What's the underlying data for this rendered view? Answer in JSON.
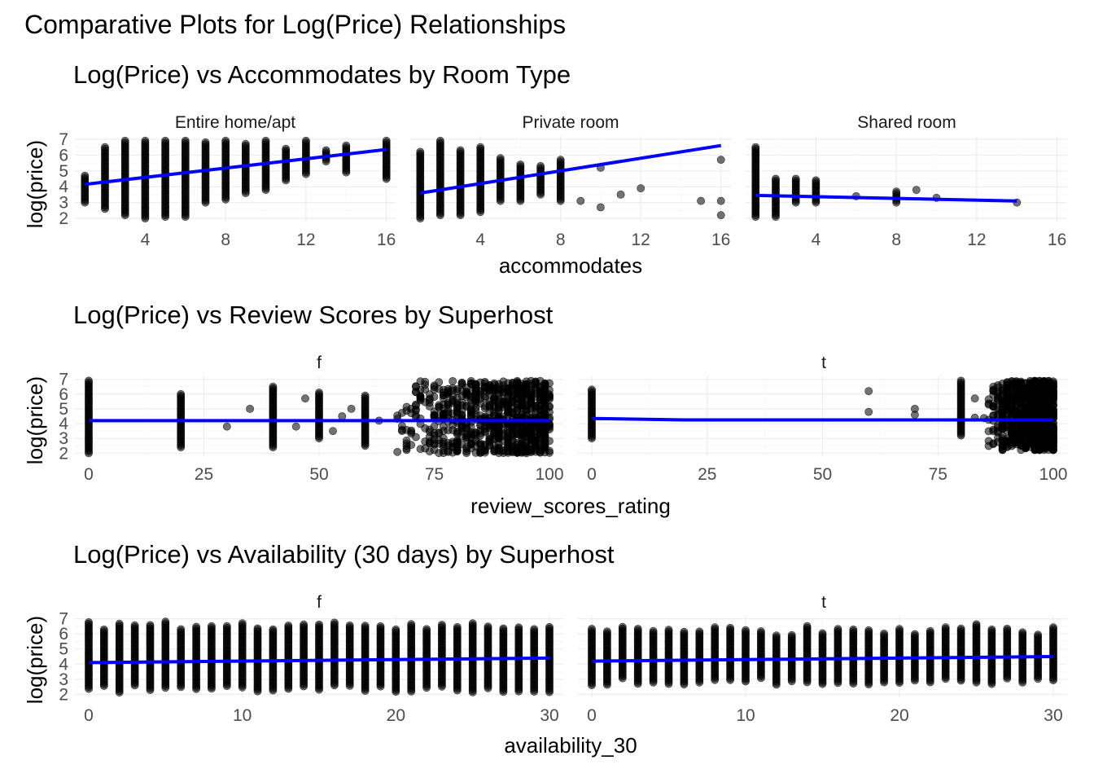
{
  "main_title": "Comparative Plots for Log(Price) Relationships",
  "colors": {
    "points": "#000000",
    "fit_line": "#0000ff",
    "grid": "#ebebeb"
  },
  "chart_data": [
    {
      "type": "scatter",
      "title": "Log(Price) vs Accommodates by Room Type",
      "xlabel": "accommodates",
      "ylabel": "log(price)",
      "xlim": [
        0.5,
        16.5
      ],
      "ylim": [
        1.8,
        7.2
      ],
      "x_ticks": [
        4,
        8,
        12,
        16
      ],
      "y_ticks": [
        2,
        3,
        4,
        5,
        6,
        7
      ],
      "grid": true,
      "facets": [
        {
          "label": "Entire home/apt",
          "fit": [
            [
              1,
              4.15
            ],
            [
              16,
              6.35
            ]
          ],
          "columns": [
            {
              "x": 1,
              "y": [
                3.0,
                4.7
              ]
            },
            {
              "x": 2,
              "y": [
                2.6,
                6.5
              ]
            },
            {
              "x": 3,
              "y": [
                2.2,
                6.9
              ]
            },
            {
              "x": 4,
              "y": [
                2.0,
                6.9
              ]
            },
            {
              "x": 5,
              "y": [
                2.1,
                6.9
              ]
            },
            {
              "x": 6,
              "y": [
                2.1,
                6.9
              ]
            },
            {
              "x": 7,
              "y": [
                3.0,
                6.8
              ]
            },
            {
              "x": 8,
              "y": [
                3.2,
                6.9
              ]
            },
            {
              "x": 9,
              "y": [
                3.6,
                6.7
              ]
            },
            {
              "x": 10,
              "y": [
                3.8,
                6.9
              ]
            },
            {
              "x": 11,
              "y": [
                4.4,
                6.4
              ]
            },
            {
              "x": 12,
              "y": [
                4.8,
                6.9
              ]
            },
            {
              "x": 13,
              "y": [
                5.6,
                6.3
              ]
            },
            {
              "x": 14,
              "y": [
                4.9,
                6.6
              ]
            },
            {
              "x": 16,
              "y": [
                4.5,
                6.9
              ]
            }
          ]
        },
        {
          "label": "Private room",
          "fit": [
            [
              1,
              3.6
            ],
            [
              16,
              6.6
            ]
          ],
          "columns": [
            {
              "x": 1,
              "y": [
                2.0,
                6.2
              ]
            },
            {
              "x": 2,
              "y": [
                2.2,
                6.9
              ]
            },
            {
              "x": 3,
              "y": [
                2.2,
                6.3
              ]
            },
            {
              "x": 4,
              "y": [
                2.4,
                6.5
              ]
            },
            {
              "x": 5,
              "y": [
                3.1,
                5.8
              ]
            },
            {
              "x": 6,
              "y": [
                3.1,
                5.4
              ]
            },
            {
              "x": 7,
              "y": [
                3.5,
                5.3
              ]
            },
            {
              "x": 8,
              "y": [
                3.1,
                5.7
              ]
            }
          ],
          "outliers": [
            [
              9,
              3.1
            ],
            [
              10,
              5.2
            ],
            [
              10,
              2.7
            ],
            [
              11,
              3.5
            ],
            [
              12,
              3.9
            ],
            [
              15,
              3.1
            ],
            [
              16,
              2.2
            ],
            [
              16,
              3.1
            ],
            [
              16,
              5.7
            ]
          ]
        },
        {
          "label": "Shared room",
          "fit": [
            [
              1,
              3.45
            ],
            [
              14,
              3.1
            ]
          ],
          "columns": [
            {
              "x": 1,
              "y": [
                2.1,
                6.5
              ]
            },
            {
              "x": 2,
              "y": [
                2.1,
                4.5
              ]
            },
            {
              "x": 3,
              "y": [
                3.0,
                4.5
              ]
            },
            {
              "x": 4,
              "y": [
                3.0,
                4.4
              ]
            },
            {
              "x": 8,
              "y": [
                3.0,
                3.7
              ]
            }
          ],
          "outliers": [
            [
              6,
              3.4
            ],
            [
              9,
              3.8
            ],
            [
              10,
              3.3
            ],
            [
              14,
              3.0
            ]
          ]
        }
      ]
    },
    {
      "type": "scatter",
      "title": "Log(Price) vs Review Scores by Superhost",
      "xlabel": "review_scores_rating",
      "ylabel": "log(price)",
      "xlim": [
        -3,
        103
      ],
      "ylim": [
        1.8,
        7.2
      ],
      "x_ticks": [
        0,
        25,
        50,
        75,
        100
      ],
      "y_ticks": [
        2,
        3,
        4,
        5,
        6,
        7
      ],
      "grid": true,
      "facets": [
        {
          "label": "f",
          "fit": [
            [
              0,
              4.2
            ],
            [
              100,
              4.2
            ]
          ],
          "columns": [
            {
              "x": 0,
              "y": [
                2.0,
                6.9
              ]
            },
            {
              "x": 20,
              "y": [
                2.4,
                6.0
              ]
            },
            {
              "x": 40,
              "y": [
                2.4,
                6.5
              ]
            },
            {
              "x": 50,
              "y": [
                3.0,
                6.1
              ]
            },
            {
              "x": 60,
              "y": [
                2.5,
                5.9
              ]
            }
          ],
          "dense": {
            "x_range": [
              65,
              100
            ],
            "y_range": [
              2.0,
              6.9
            ]
          },
          "outliers": [
            [
              30,
              3.8
            ],
            [
              35,
              5.0
            ],
            [
              45,
              3.8
            ],
            [
              47,
              5.7
            ],
            [
              53,
              3.5
            ],
            [
              55,
              4.5
            ],
            [
              57,
              5.0
            ],
            [
              63,
              4.2
            ]
          ]
        },
        {
          "label": "t",
          "fit": [
            [
              0,
              4.35
            ],
            [
              20,
              4.25
            ],
            [
              100,
              4.25
            ]
          ],
          "columns": [
            {
              "x": 0,
              "y": [
                3.0,
                6.3
              ]
            },
            {
              "x": 80,
              "y": [
                3.2,
                6.9
              ]
            }
          ],
          "dense": {
            "x_range": [
              85,
              100
            ],
            "y_range": [
              2.2,
              6.9
            ]
          },
          "outliers": [
            [
              60,
              4.8
            ],
            [
              60,
              6.2
            ],
            [
              70,
              4.6
            ],
            [
              70,
              5.0
            ],
            [
              83,
              4.4
            ],
            [
              83,
              5.7
            ]
          ]
        }
      ]
    },
    {
      "type": "scatter",
      "title": "Log(Price) vs Availability (30 days) by Superhost",
      "xlabel": "availability_30",
      "ylabel": "log(price)",
      "xlim": [
        -0.9,
        30.9
      ],
      "ylim": [
        1.8,
        7.2
      ],
      "x_ticks": [
        0,
        10,
        20,
        30
      ],
      "y_ticks": [
        2,
        3,
        4,
        5,
        6,
        7
      ],
      "grid": true,
      "facets": [
        {
          "label": "f",
          "fit": [
            [
              0,
              4.1
            ],
            [
              30,
              4.4
            ]
          ],
          "x_range": [
            0,
            30
          ],
          "y_low": 2.1,
          "y_high": 6.8
        },
        {
          "label": "t",
          "fit": [
            [
              0,
              4.2
            ],
            [
              30,
              4.5
            ]
          ],
          "x_range": [
            0,
            30
          ],
          "y_low": 2.6,
          "y_high": 6.5
        }
      ]
    }
  ]
}
